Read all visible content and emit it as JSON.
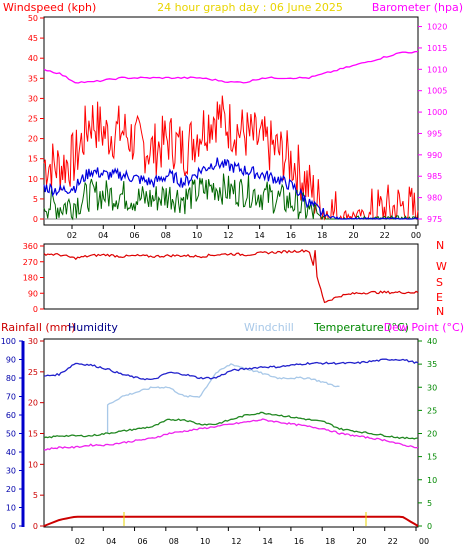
{
  "header": {
    "left_label": "Windspeed (kph)",
    "center_label": "24 hour graph day : 06 June 2025",
    "right_label": "Barometer (hpa)"
  },
  "labels": {
    "rainfall": "Rainfall (mm)",
    "humidity": "Humidity",
    "windchill": "Windchill",
    "temperature": "Temperature (°C)",
    "dewpoint": "Dew Point (°C)"
  },
  "colors": {
    "wind_gust": "#ff0000",
    "wind_avg": "#0000dd",
    "wind_green": "#006600",
    "barometer": "#ff00ff",
    "direction": "#dd0000",
    "rain": "#cc0000",
    "humidity": "#2222cc",
    "windchill": "#a8c8e8",
    "temperature": "#228822",
    "dewpoint": "#ee22ee",
    "rain_axis": "#0000cc",
    "temp_axis": "#008800"
  },
  "chart_data": [
    {
      "type": "line",
      "panel": "wind",
      "x_ticks": [
        "02",
        "04",
        "06",
        "08",
        "10",
        "12",
        "14",
        "16",
        "18",
        "20",
        "22",
        "00"
      ],
      "y_left_ticks": [
        "0",
        "5",
        "10",
        "15",
        "20",
        "25",
        "30",
        "35",
        "40",
        "45",
        "50"
      ],
      "y_left_range": [
        0,
        50
      ],
      "y_right_ticks": [
        "975",
        "980",
        "985",
        "990",
        "995",
        "1000",
        "1005",
        "1010",
        "1015",
        "1020"
      ],
      "y_right_range": [
        975,
        1022
      ],
      "gust_hourly": [
        14,
        13,
        15,
        25,
        21,
        22,
        19,
        17,
        20,
        17,
        22,
        26,
        23,
        21,
        19,
        17,
        14,
        8,
        2,
        1,
        1,
        1,
        2,
        3,
        1
      ],
      "avg_hourly": [
        8,
        7,
        8,
        12,
        11,
        11,
        10,
        9,
        11,
        9,
        12,
        14,
        13,
        12,
        11,
        10,
        8,
        4,
        1,
        0,
        0,
        0,
        0,
        0,
        0
      ],
      "green_hourly": [
        4,
        3,
        4,
        6,
        6,
        6,
        5,
        5,
        6,
        5,
        7,
        8,
        7,
        7,
        6,
        5,
        4,
        2,
        0,
        0,
        0,
        0,
        0,
        0,
        0
      ],
      "barometer_hourly": [
        1010,
        1009,
        1007,
        1007,
        1007.5,
        1008,
        1008,
        1008,
        1008,
        1008,
        1008,
        1007.5,
        1007,
        1007,
        1008,
        1008,
        1008,
        1008,
        1009,
        1010,
        1011,
        1012,
        1013,
        1014,
        1014
      ]
    },
    {
      "type": "line",
      "panel": "wind_direction",
      "y_ticks": [
        "0",
        "90",
        "180",
        "270",
        "360"
      ],
      "y_range": [
        0,
        360
      ],
      "compass_labels": [
        "N",
        "W",
        "S",
        "E",
        "N"
      ],
      "direction_hourly": [
        315,
        310,
        290,
        305,
        310,
        300,
        305,
        300,
        305,
        305,
        300,
        310,
        315,
        310,
        320,
        325,
        330,
        335,
        40,
        75,
        90,
        95,
        95,
        95,
        95
      ]
    },
    {
      "type": "line",
      "panel": "temperature",
      "y_left_ticks": [
        "0",
        "10",
        "20",
        "30",
        "40",
        "50",
        "60",
        "70",
        "80",
        "90",
        "100"
      ],
      "y_left_range": [
        0,
        100
      ],
      "y_rain_ticks": [
        "0",
        "5",
        "10",
        "15",
        "20",
        "25",
        "30"
      ],
      "y_rain_range": [
        0,
        30
      ],
      "y_right_ticks": [
        "0",
        "5",
        "10",
        "15",
        "20",
        "25",
        "30",
        "35",
        "40"
      ],
      "y_right_range": [
        0,
        40
      ],
      "humidity_hourly": [
        81,
        82,
        88,
        87,
        85,
        82,
        80,
        79,
        83,
        82,
        80,
        80,
        84,
        85,
        86,
        86,
        87,
        88,
        88,
        88,
        88,
        89,
        90,
        90,
        88
      ],
      "temperature_hourly": [
        19,
        19.5,
        19.5,
        19.5,
        20,
        20.5,
        21,
        21.5,
        23,
        23,
        22,
        22,
        23,
        24,
        24.5,
        24,
        23.5,
        23,
        22.5,
        21,
        20.5,
        20,
        19.5,
        19,
        19
      ],
      "dewpoint_hourly": [
        16.5,
        17,
        17,
        17.5,
        17.5,
        18,
        18.5,
        19,
        20,
        20.5,
        21,
        21.5,
        22,
        22.5,
        23,
        22.5,
        22,
        21.5,
        21,
        20,
        19.5,
        19,
        18.5,
        17.5,
        17
      ],
      "windchill_hourly": [
        null,
        null,
        null,
        null,
        26,
        28,
        29,
        30,
        30,
        28,
        28,
        33,
        35,
        34,
        33,
        32,
        32,
        32,
        31,
        30,
        null,
        null,
        null,
        null,
        null
      ],
      "rain_hourly": [
        0,
        1,
        1.5,
        1.5,
        1.5,
        1.5,
        1.5,
        1.5,
        1.5,
        1.5,
        1.5,
        1.5,
        1.5,
        1.5,
        1.5,
        1.5,
        1.5,
        1.5,
        1.5,
        1.5,
        1.5,
        1.5,
        1.5,
        1.5,
        0
      ]
    }
  ]
}
